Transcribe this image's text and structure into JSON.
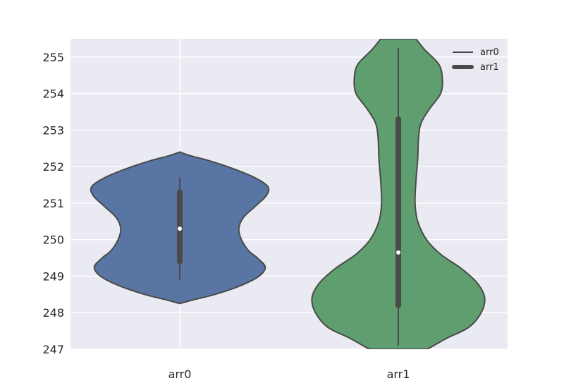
{
  "chart_data": {
    "type": "violin",
    "title": "",
    "xlabel": "",
    "ylabel": "",
    "categories": [
      "arr0",
      "arr1"
    ],
    "ylim": [
      247,
      255.5
    ],
    "yticks": [
      247,
      248,
      249,
      250,
      251,
      252,
      253,
      254,
      255
    ],
    "grid": true,
    "legend": {
      "placement": "top-right",
      "entries": [
        {
          "label": "arr0",
          "style": "thin line"
        },
        {
          "label": "arr1",
          "style": "thick line"
        }
      ]
    },
    "colors": {
      "background": "#eaeaf2",
      "grid": "#ffffff",
      "outline": "#4a4a4a",
      "arr0": "#5875a4",
      "arr1": "#5f9e6e"
    },
    "series": [
      {
        "category": "arr0",
        "median": 250.3,
        "q1": 249.4,
        "q3": 251.3,
        "whisker_low": 248.9,
        "whisker_high": 251.7,
        "kde_min": 248.25,
        "kde_max": 252.4,
        "density_profile": [
          [
            248.25,
            0.0
          ],
          [
            248.35,
            0.15
          ],
          [
            248.5,
            0.4
          ],
          [
            248.75,
            0.7
          ],
          [
            249.0,
            0.9
          ],
          [
            249.25,
            0.97
          ],
          [
            249.5,
            0.88
          ],
          [
            249.7,
            0.78
          ],
          [
            250.0,
            0.7
          ],
          [
            250.3,
            0.67
          ],
          [
            250.6,
            0.72
          ],
          [
            250.9,
            0.85
          ],
          [
            251.2,
            0.98
          ],
          [
            251.45,
            1.0
          ],
          [
            251.7,
            0.85
          ],
          [
            251.95,
            0.6
          ],
          [
            252.15,
            0.35
          ],
          [
            252.3,
            0.12
          ],
          [
            252.4,
            0.0
          ]
        ]
      },
      {
        "category": "arr1",
        "median": 249.65,
        "q1": 248.2,
        "q3": 253.3,
        "whisker_low": 247.1,
        "whisker_high": 255.25,
        "kde_min": 247.0,
        "kde_max": 255.5,
        "density_profile": [
          [
            247.0,
            0.33
          ],
          [
            247.3,
            0.55
          ],
          [
            247.6,
            0.8
          ],
          [
            248.0,
            0.94
          ],
          [
            248.4,
            0.98
          ],
          [
            248.8,
            0.9
          ],
          [
            249.2,
            0.72
          ],
          [
            249.6,
            0.48
          ],
          [
            250.0,
            0.32
          ],
          [
            250.5,
            0.22
          ],
          [
            251.0,
            0.19
          ],
          [
            251.6,
            0.2
          ],
          [
            252.2,
            0.22
          ],
          [
            252.8,
            0.23
          ],
          [
            253.2,
            0.26
          ],
          [
            253.6,
            0.36
          ],
          [
            254.0,
            0.48
          ],
          [
            254.4,
            0.5
          ],
          [
            254.8,
            0.46
          ],
          [
            255.2,
            0.3
          ],
          [
            255.5,
            0.2
          ]
        ]
      }
    ]
  }
}
